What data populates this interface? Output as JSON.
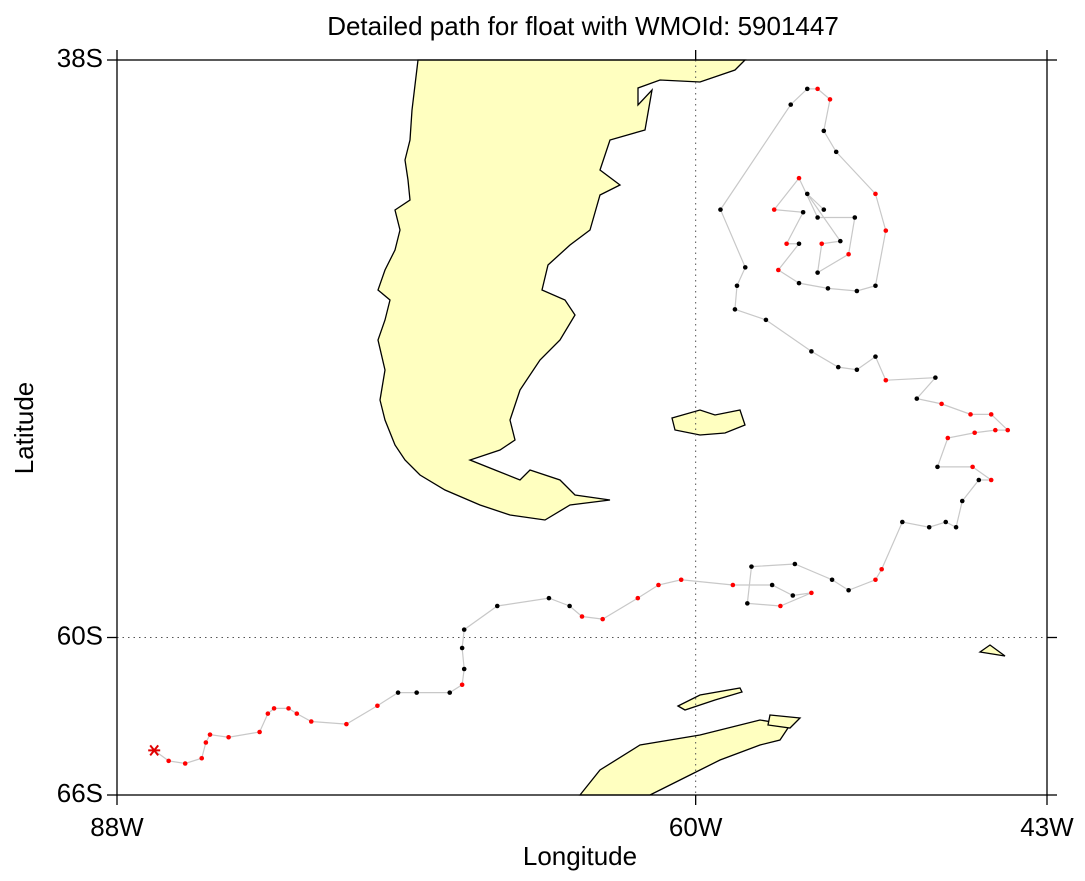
{
  "chart_data": {
    "type": "track",
    "title": "Detailed path for float with WMOId: 5901447",
    "x_label": "Longitude",
    "y_label": "Latitude",
    "xlim": [
      -88,
      -43
    ],
    "ylim": [
      -66,
      -38
    ],
    "xticks": [
      {
        "value": -88,
        "label": "88W"
      },
      {
        "value": -60,
        "label": "60W"
      },
      {
        "value": -43,
        "label": "43W"
      }
    ],
    "yticks": [
      {
        "value": -38,
        "label": "38S"
      },
      {
        "value": -60,
        "label": "60S"
      },
      {
        "value": -66,
        "label": "66S"
      }
    ],
    "grid": true,
    "line_color": "#c8c8c8",
    "land_color": "#ffffc0",
    "start_color": "#e00000",
    "track": {
      "lon": [
        -86.2,
        -85.5,
        -84.7,
        -83.9,
        -83.7,
        -83.5,
        -82.6,
        -81.1,
        -80.7,
        -80.4,
        -79.7,
        -79.3,
        -78.6,
        -76.9,
        -75.4,
        -74.4,
        -73.5,
        -71.9,
        -71.3,
        -71.2,
        -71.3,
        -71.2,
        -69.6,
        -67.1,
        -66.1,
        -65.5,
        -64.5,
        -62.8,
        -61.8,
        -60.7,
        -58.2,
        -56.3,
        -55.3,
        -54.4,
        -55.9,
        -57.5,
        -57.3,
        -55.2,
        -53.4,
        -52.6,
        -51.3,
        -51.0,
        -50.0,
        -48.7,
        -47.9,
        -47.4,
        -47.1,
        -46.3,
        -45.7,
        -46.6,
        -48.3,
        -47.8,
        -46.5,
        -45.5,
        -44.9,
        -45.7,
        -46.7,
        -48.1,
        -49.3,
        -48.4,
        -50.8,
        -51.3,
        -52.2,
        -53.1,
        -54.4,
        -56.6,
        -58.1,
        -58.0,
        -57.6,
        -58.8,
        -55.4,
        -54.6,
        -54.1,
        -53.5,
        -53.8,
        -53.2,
        -51.3,
        -50.8,
        -51.3,
        -52.2,
        -53.6,
        -55.0,
        -56.0,
        -55.0,
        -55.6,
        -54.8,
        -56.2,
        -55.0,
        -54.1,
        -52.3,
        -52.6,
        -54.1,
        -53.9,
        -53.0,
        -54.6,
        -53.8
      ],
      "lat": [
        -64.3,
        -64.7,
        -64.8,
        -64.6,
        -64.0,
        -63.7,
        -63.8,
        -63.6,
        -62.9,
        -62.7,
        -62.7,
        -62.9,
        -63.2,
        -63.3,
        -62.6,
        -62.1,
        -62.1,
        -62.1,
        -61.8,
        -61.2,
        -60.4,
        -59.7,
        -58.8,
        -58.5,
        -58.8,
        -59.2,
        -59.3,
        -58.5,
        -58.0,
        -57.8,
        -58.0,
        -58.0,
        -58.4,
        -58.3,
        -58.8,
        -58.7,
        -57.3,
        -57.2,
        -57.8,
        -58.2,
        -57.8,
        -57.4,
        -55.6,
        -55.8,
        -55.6,
        -55.8,
        -54.8,
        -54.0,
        -54.0,
        -53.5,
        -53.5,
        -52.4,
        -52.2,
        -52.1,
        -52.1,
        -51.5,
        -51.5,
        -51.1,
        -50.9,
        -50.1,
        -50.2,
        -49.3,
        -49.8,
        -49.7,
        -49.1,
        -47.9,
        -47.5,
        -46.6,
        -45.9,
        -43.7,
        -39.7,
        -39.1,
        -39.1,
        -39.5,
        -40.7,
        -41.5,
        -43.1,
        -44.5,
        -46.6,
        -46.8,
        -46.7,
        -46.5,
        -46.0,
        -45.0,
        -45.0,
        -43.8,
        -43.7,
        -42.5,
        -44.0,
        -44.0,
        -45.4,
        -46.1,
        -45.0,
        -44.9,
        -43.1,
        -43.7
      ],
      "colors": [
        "red",
        "red",
        "red",
        "red",
        "red",
        "red",
        "red",
        "red",
        "red",
        "red",
        "red",
        "red",
        "red",
        "red",
        "red",
        "black",
        "black",
        "black",
        "red",
        "black",
        "black",
        "black",
        "black",
        "black",
        "black",
        "red",
        "red",
        "red",
        "red",
        "red",
        "red",
        "black",
        "black",
        "red",
        "red",
        "black",
        "black",
        "black",
        "black",
        "black",
        "red",
        "red",
        "black",
        "black",
        "black",
        "black",
        "black",
        "black",
        "red",
        "red",
        "black",
        "red",
        "red",
        "red",
        "red",
        "red",
        "red",
        "red",
        "black",
        "black",
        "red",
        "black",
        "black",
        "black",
        "black",
        "black",
        "black",
        "black",
        "black",
        "black",
        "black",
        "black",
        "red",
        "red",
        "black",
        "black",
        "red",
        "red",
        "black",
        "black",
        "black",
        "black",
        "red",
        "black",
        "red",
        "black",
        "red",
        "red",
        "black",
        "black",
        "red",
        "black",
        "red",
        "black",
        "black",
        "black"
      ]
    }
  }
}
